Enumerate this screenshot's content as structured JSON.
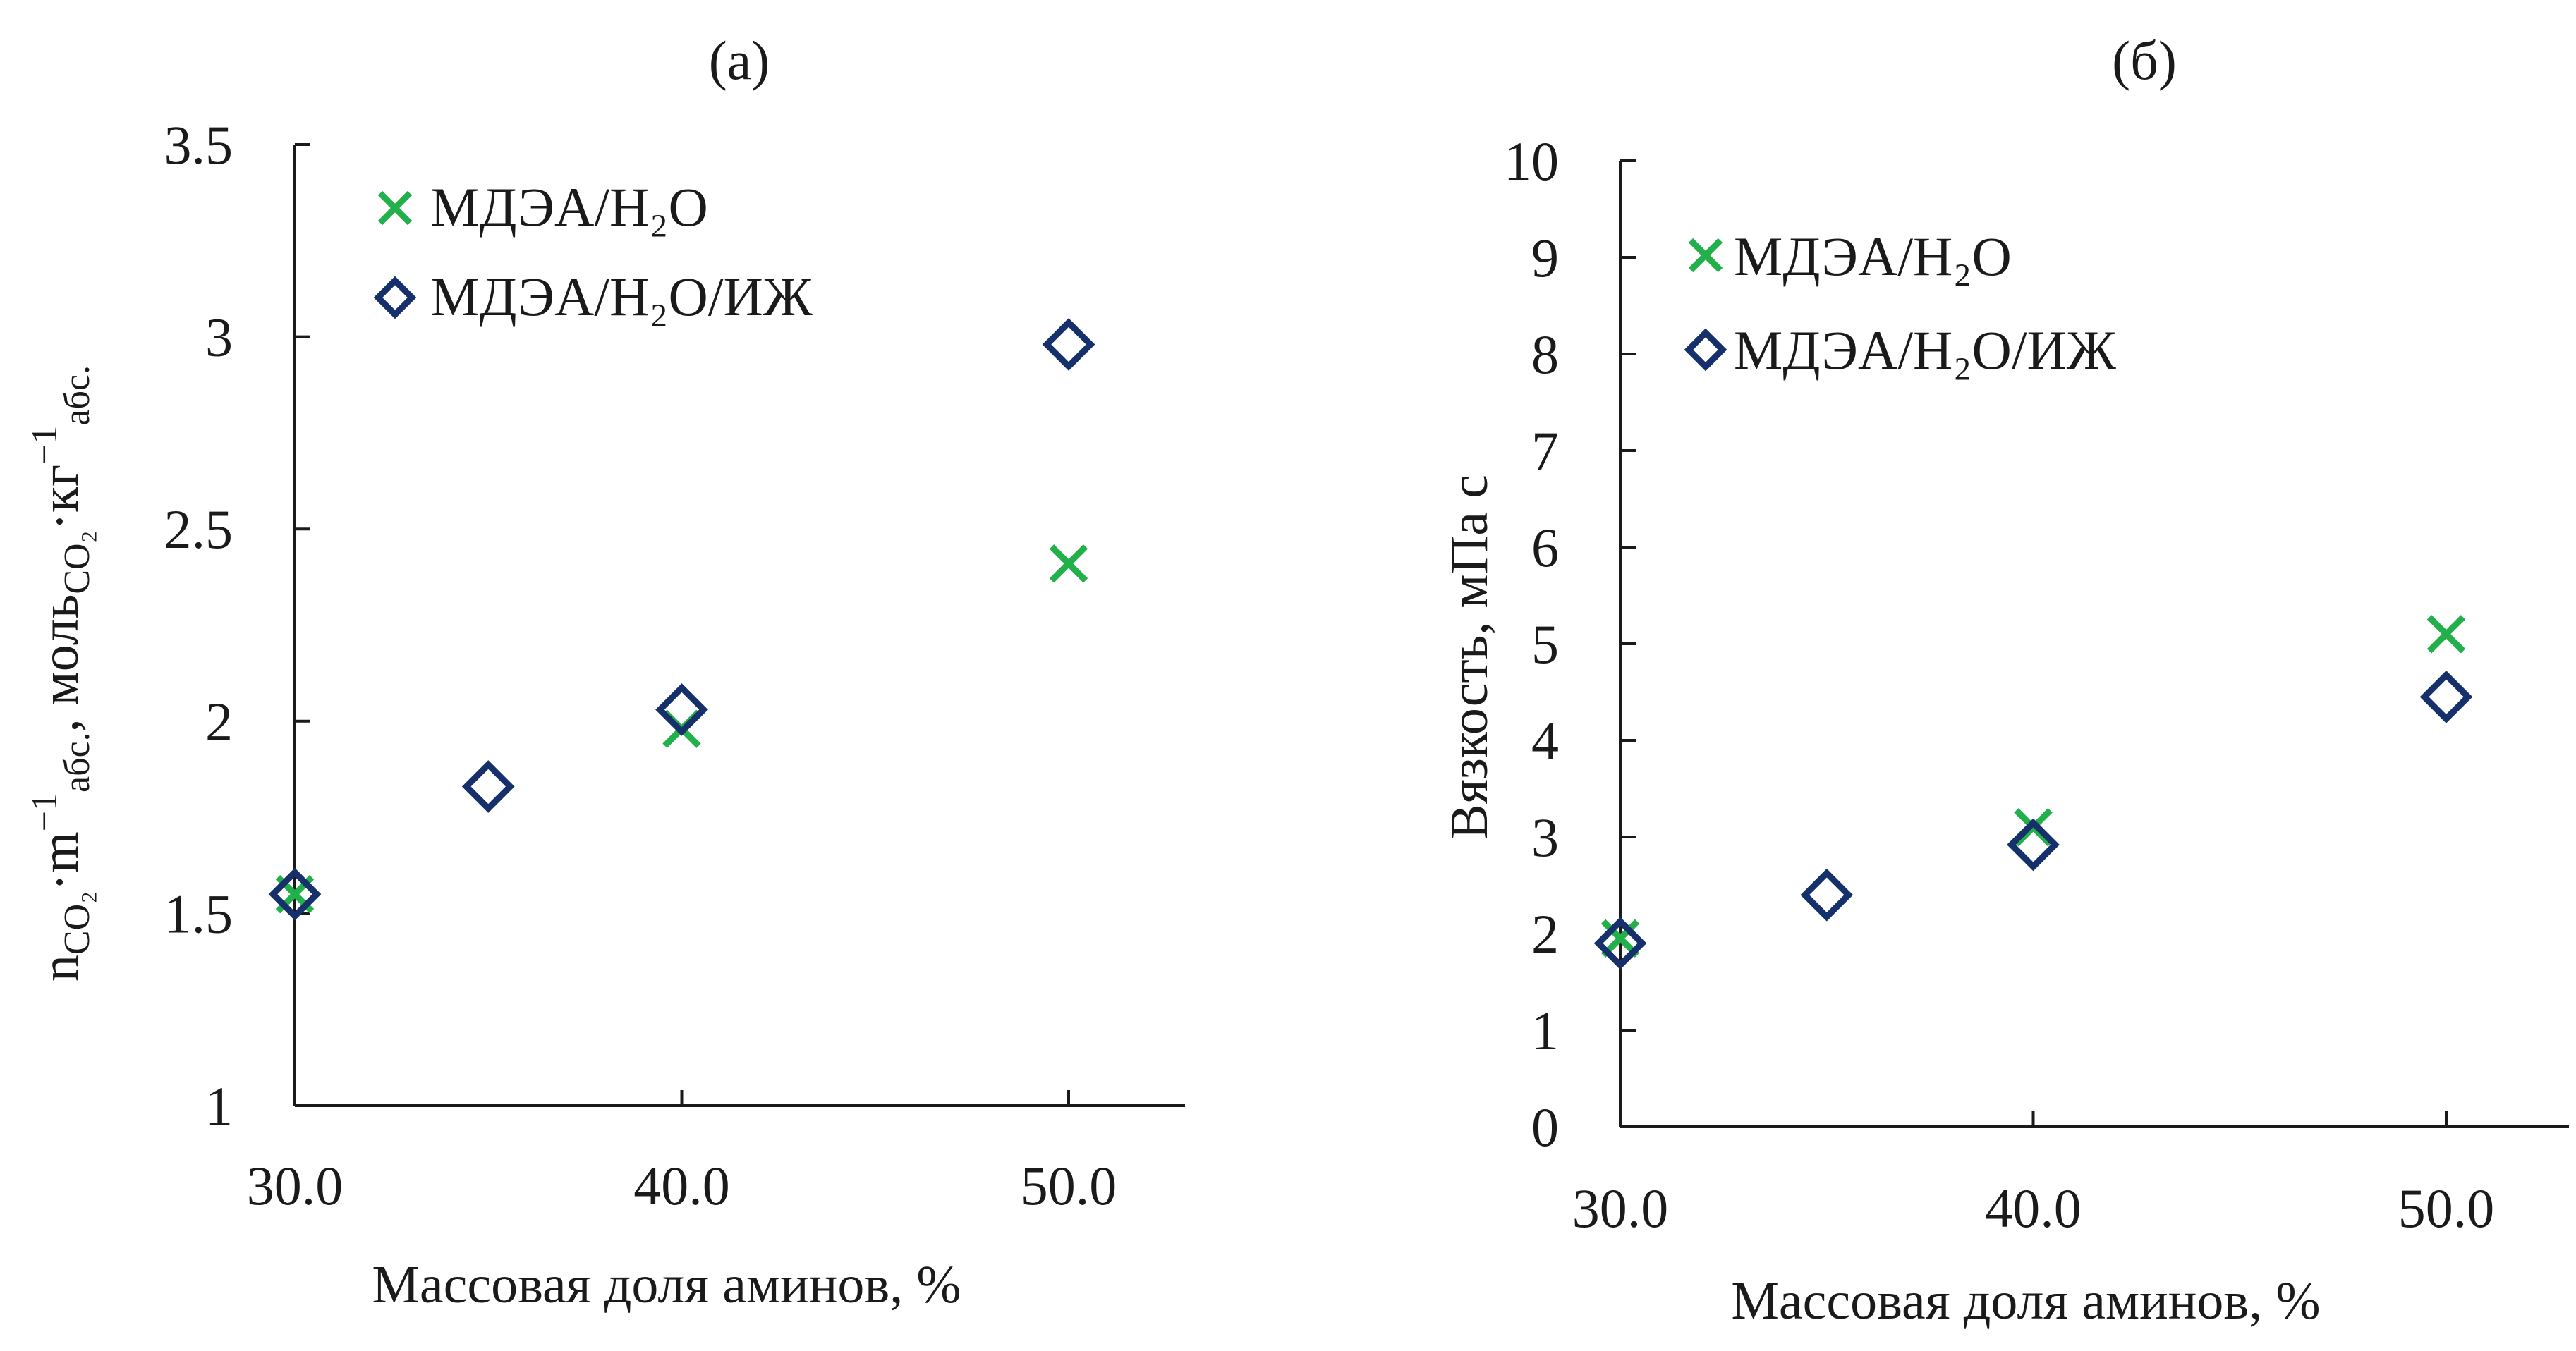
{
  "colors": {
    "series1": "#22b04b",
    "series2": "#15306b",
    "axis": "#1a1a1a"
  },
  "chart_data": [
    {
      "type": "scatter",
      "panel_label": "(a)",
      "xlabel": "Массовая доля аминов, %",
      "ylabel_parts": {
        "main1": "n",
        "sub1": "CO₂",
        "main2": "·m",
        "sup1": "−1",
        "sub2": "абс.",
        "main3": ", моль",
        "sub3": "CO₂",
        "main4": "·кг",
        "sup2": "−1",
        "sub4": "абс."
      },
      "xlim": [
        30,
        53
      ],
      "ylim": [
        1,
        3.5
      ],
      "xticks": [
        30,
        40,
        50
      ],
      "xtick_labels": [
        "30.0",
        "40.0",
        "50.0"
      ],
      "yticks": [
        1,
        1.5,
        2,
        2.5,
        3,
        3.5
      ],
      "ytick_labels": [
        "1",
        "1.5",
        "2",
        "2.5",
        "3",
        "3.5"
      ],
      "legend_position": "top-left",
      "series": [
        {
          "name": "МДЭА/H₂O",
          "marker": "cross",
          "x": [
            30,
            40,
            50
          ],
          "y": [
            1.55,
            1.98,
            2.41
          ]
        },
        {
          "name": "МДЭА/H₂O/ИЖ",
          "marker": "diamond",
          "x": [
            30,
            35,
            40,
            50
          ],
          "y": [
            1.55,
            1.83,
            2.03,
            2.98
          ]
        }
      ]
    },
    {
      "type": "scatter",
      "panel_label": "(б)",
      "xlabel": "Массовая доля аминов, %",
      "ylabel": "Вязкость, мПа с",
      "xlim": [
        30,
        53
      ],
      "ylim": [
        0,
        10
      ],
      "xticks": [
        30,
        40,
        50
      ],
      "xtick_labels": [
        "30.0",
        "40.0",
        "50.0"
      ],
      "yticks": [
        0,
        1,
        2,
        3,
        4,
        5,
        6,
        7,
        8,
        9,
        10
      ],
      "ytick_labels": [
        "0",
        "1",
        "2",
        "3",
        "4",
        "5",
        "6",
        "7",
        "8",
        "9",
        "10"
      ],
      "legend_position": "top-left",
      "series": [
        {
          "name": "МДЭА/H₂O",
          "marker": "cross",
          "x": [
            30,
            40,
            50
          ],
          "y": [
            1.95,
            3.1,
            5.1
          ]
        },
        {
          "name": "МДЭА/H₂O/ИЖ",
          "marker": "diamond",
          "x": [
            30,
            35,
            40,
            50
          ],
          "y": [
            1.9,
            2.4,
            2.92,
            4.45
          ]
        }
      ]
    }
  ]
}
